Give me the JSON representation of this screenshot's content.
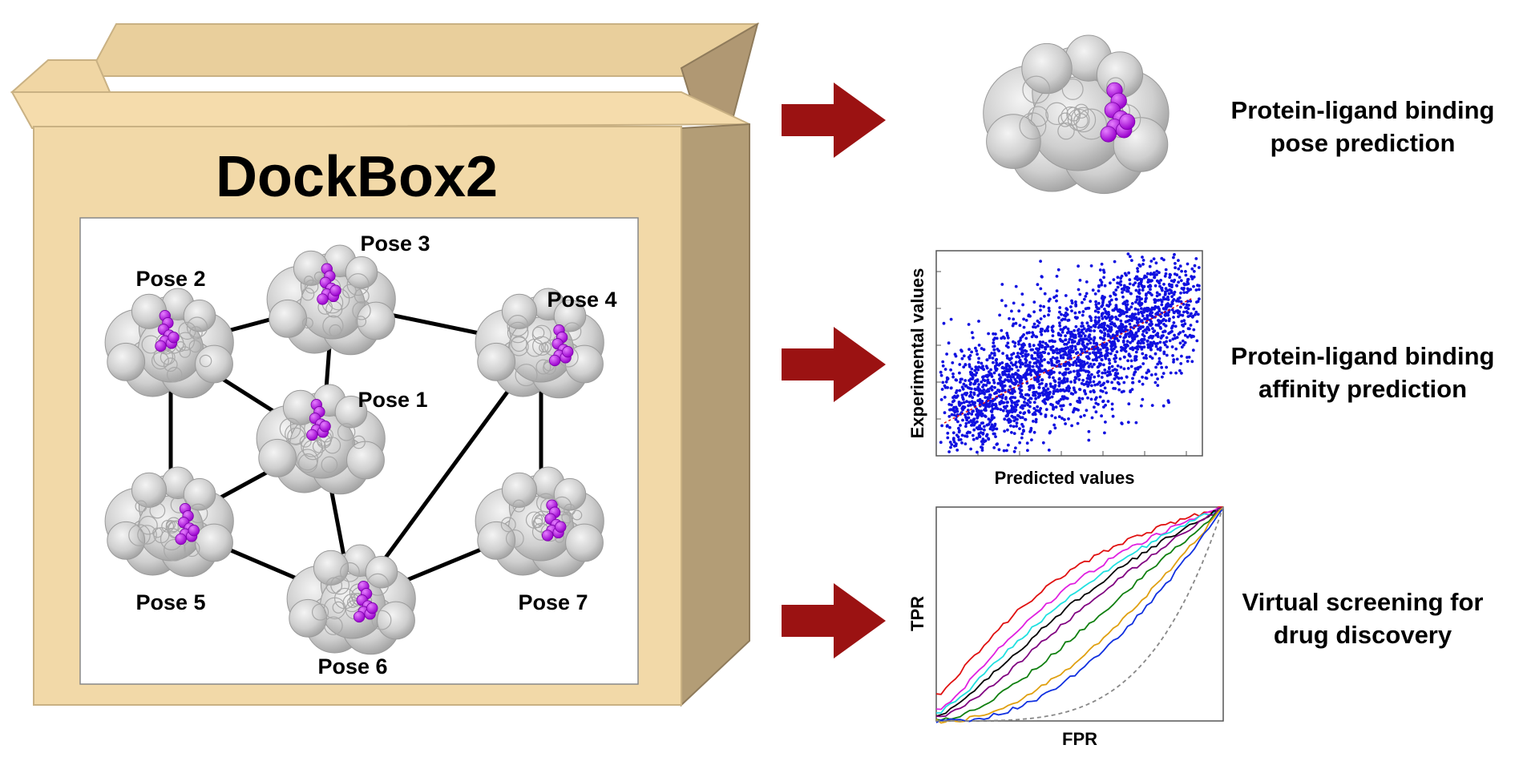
{
  "box": {
    "title": "DockBox2",
    "poses": [
      {
        "id": "pose1",
        "label": "Pose 1"
      },
      {
        "id": "pose2",
        "label": "Pose 2"
      },
      {
        "id": "pose3",
        "label": "Pose 3"
      },
      {
        "id": "pose4",
        "label": "Pose 4"
      },
      {
        "id": "pose5",
        "label": "Pose 5"
      },
      {
        "id": "pose6",
        "label": "Pose 6"
      },
      {
        "id": "pose7",
        "label": "Pose 7"
      }
    ],
    "edges": [
      [
        "pose2",
        "pose3"
      ],
      [
        "pose3",
        "pose4"
      ],
      [
        "pose2",
        "pose5"
      ],
      [
        "pose2",
        "pose1"
      ],
      [
        "pose3",
        "pose1"
      ],
      [
        "pose1",
        "pose5"
      ],
      [
        "pose1",
        "pose6"
      ],
      [
        "pose4",
        "pose7"
      ],
      [
        "pose4",
        "pose6"
      ],
      [
        "pose5",
        "pose6"
      ],
      [
        "pose6",
        "pose7"
      ]
    ]
  },
  "outputs": {
    "pose_task": {
      "line1": "Protein-ligand binding",
      "line2": "pose prediction"
    },
    "affinity_task": {
      "line1": "Protein-ligand binding",
      "line2": "affinity prediction"
    },
    "screening_task": {
      "line1": "Virtual screening for",
      "line2": "drug discovery"
    }
  },
  "scatter_plot": {
    "xlabel": "Predicted values",
    "ylabel": "Experimental values"
  },
  "roc_plot": {
    "xlabel": "FPR",
    "ylabel": "TPR"
  },
  "colors": {
    "box_face": "#f2d9a8",
    "box_side": "#b8a27c",
    "arrow": "#9b1212",
    "protein": "#cfcfcf",
    "ligand": "#b300e6",
    "scatter_points": "#1010e0",
    "fit_line": "#e01010"
  }
}
